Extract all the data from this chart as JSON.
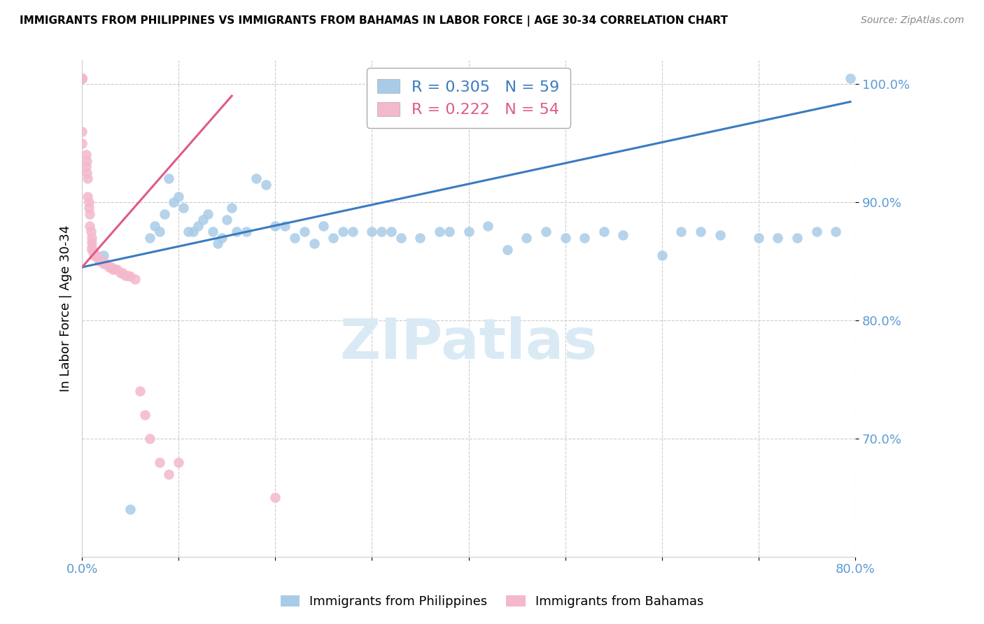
{
  "title": "IMMIGRANTS FROM PHILIPPINES VS IMMIGRANTS FROM BAHAMAS IN LABOR FORCE | AGE 30-34 CORRELATION CHART",
  "source": "Source: ZipAtlas.com",
  "ylabel": "In Labor Force | Age 30-34",
  "legend_blue_label": "Immigrants from Philippines",
  "legend_pink_label": "Immigrants from Bahamas",
  "legend_blue_r": "0.305",
  "legend_blue_n": "59",
  "legend_pink_r": "0.222",
  "legend_pink_n": "54",
  "xlim": [
    0.0,
    0.8
  ],
  "ylim": [
    0.6,
    1.02
  ],
  "xticks": [
    0.0,
    0.1,
    0.2,
    0.3,
    0.4,
    0.5,
    0.6,
    0.7,
    0.8
  ],
  "yticks": [
    0.7,
    0.8,
    0.9,
    1.0
  ],
  "ytick_labels": [
    "70.0%",
    "80.0%",
    "90.0%",
    "100.0%"
  ],
  "xtick_labels": [
    "0.0%",
    "",
    "",
    "",
    "",
    "",
    "",
    "",
    "80.0%"
  ],
  "blue_color": "#a8cce8",
  "pink_color": "#f4b8cc",
  "blue_line_color": "#3a7bbf",
  "pink_line_color": "#e05a8a",
  "axis_tick_color": "#5b9bd5",
  "watermark_color": "#daeaf5",
  "blue_trendline_x": [
    0.0,
    0.795
  ],
  "blue_trendline_y": [
    0.845,
    0.985
  ],
  "pink_trendline_x": [
    0.0,
    0.155
  ],
  "pink_trendline_y": [
    0.845,
    0.99
  ],
  "blue_x": [
    0.022,
    0.05,
    0.07,
    0.075,
    0.08,
    0.085,
    0.09,
    0.095,
    0.1,
    0.105,
    0.11,
    0.115,
    0.12,
    0.125,
    0.13,
    0.135,
    0.14,
    0.145,
    0.15,
    0.155,
    0.16,
    0.17,
    0.18,
    0.19,
    0.2,
    0.21,
    0.22,
    0.23,
    0.24,
    0.25,
    0.26,
    0.27,
    0.28,
    0.3,
    0.31,
    0.32,
    0.33,
    0.35,
    0.37,
    0.38,
    0.4,
    0.42,
    0.44,
    0.46,
    0.48,
    0.5,
    0.52,
    0.54,
    0.56,
    0.6,
    0.62,
    0.64,
    0.66,
    0.7,
    0.72,
    0.74,
    0.76,
    0.78,
    0.795
  ],
  "blue_y": [
    0.855,
    0.64,
    0.87,
    0.88,
    0.875,
    0.89,
    0.92,
    0.9,
    0.905,
    0.895,
    0.875,
    0.875,
    0.88,
    0.885,
    0.89,
    0.875,
    0.865,
    0.87,
    0.885,
    0.895,
    0.875,
    0.875,
    0.92,
    0.915,
    0.88,
    0.88,
    0.87,
    0.875,
    0.865,
    0.88,
    0.87,
    0.875,
    0.875,
    0.875,
    0.875,
    0.875,
    0.87,
    0.87,
    0.875,
    0.875,
    0.875,
    0.88,
    0.86,
    0.87,
    0.875,
    0.87,
    0.87,
    0.875,
    0.872,
    0.855,
    0.875,
    0.875,
    0.872,
    0.87,
    0.87,
    0.87,
    0.875,
    0.875,
    1.005
  ],
  "pink_x": [
    0.0,
    0.0,
    0.0,
    0.0,
    0.0,
    0.0,
    0.0,
    0.0,
    0.0,
    0.0,
    0.004,
    0.004,
    0.005,
    0.005,
    0.006,
    0.006,
    0.007,
    0.007,
    0.008,
    0.008,
    0.009,
    0.01,
    0.01,
    0.01,
    0.01,
    0.012,
    0.012,
    0.013,
    0.014,
    0.015,
    0.016,
    0.017,
    0.018,
    0.02,
    0.022,
    0.025,
    0.028,
    0.03,
    0.032,
    0.034,
    0.036,
    0.04,
    0.042,
    0.045,
    0.048,
    0.05,
    0.055,
    0.06,
    0.065,
    0.07,
    0.08,
    0.09,
    0.1,
    0.2
  ],
  "pink_y": [
    1.005,
    1.005,
    1.005,
    1.005,
    1.005,
    1.005,
    1.005,
    1.005,
    0.96,
    0.95,
    0.94,
    0.93,
    0.935,
    0.925,
    0.92,
    0.905,
    0.9,
    0.895,
    0.89,
    0.88,
    0.875,
    0.87,
    0.866,
    0.862,
    0.86,
    0.858,
    0.855,
    0.855,
    0.855,
    0.855,
    0.853,
    0.852,
    0.85,
    0.85,
    0.848,
    0.848,
    0.845,
    0.845,
    0.843,
    0.843,
    0.843,
    0.84,
    0.84,
    0.838,
    0.838,
    0.837,
    0.835,
    0.74,
    0.72,
    0.7,
    0.68,
    0.67,
    0.68,
    0.65
  ]
}
